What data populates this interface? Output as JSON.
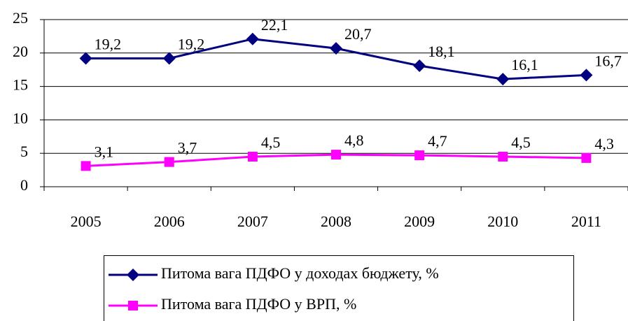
{
  "chart_data": {
    "type": "line",
    "categories": [
      "2005",
      "2006",
      "2007",
      "2008",
      "2009",
      "2010",
      "2011"
    ],
    "series": [
      {
        "name": "Питома вага ПДФО у доходах бюджету, %",
        "color": "#000080",
        "marker": "diamond",
        "values": [
          19.2,
          19.2,
          22.1,
          20.7,
          18.1,
          16.1,
          16.7
        ],
        "value_labels": [
          "19,2",
          "19,2",
          "22,1",
          "20,7",
          "18,1",
          "16,1",
          "16,7"
        ]
      },
      {
        "name": "Питома вага ПДФО у ВРП, %",
        "color": "#ff00ff",
        "marker": "square",
        "values": [
          3.1,
          3.7,
          4.5,
          4.8,
          4.7,
          4.5,
          4.3
        ],
        "value_labels": [
          "3,1",
          "3,7",
          "4,5",
          "4,8",
          "4,7",
          "4,5",
          "4,3"
        ]
      }
    ],
    "ylim": [
      0,
      25
    ],
    "yticks": [
      0,
      5,
      10,
      15,
      20,
      25
    ],
    "grid": true,
    "legend": "bottom"
  }
}
